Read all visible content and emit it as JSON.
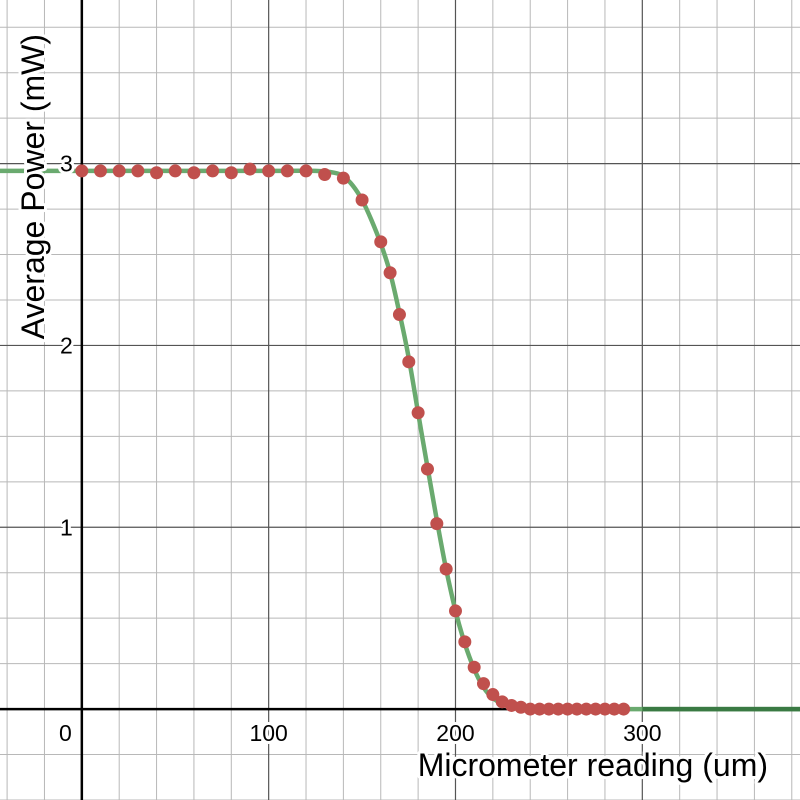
{
  "chart_data": {
    "type": "scatter",
    "xlabel": "Micrometer reading (um)",
    "ylabel": "Average Power (mW)",
    "xlim": [
      -43.8,
      384.4
    ],
    "ylim": [
      -0.5,
      3.9
    ],
    "grid": true,
    "x_ticks": [
      0,
      100,
      200,
      300
    ],
    "y_ticks": [
      1,
      2,
      3
    ],
    "x_tick_labels": [
      "0",
      "100",
      "200",
      "300"
    ],
    "y_tick_labels": [
      "1",
      "2",
      "3"
    ],
    "colors": {
      "points": "#c0504d",
      "fit_line": "#6aaa6f",
      "fit_line_tail": "#3a7a43",
      "major_grid": "#555555",
      "minor_grid": "#b8b8b8",
      "axis": "#000000"
    },
    "series": [
      {
        "kind": "points",
        "x": [
          0,
          10,
          20,
          30,
          40,
          50,
          60,
          70,
          80,
          90,
          100,
          110,
          120,
          130,
          140,
          150,
          160,
          165,
          170,
          175,
          180,
          185,
          190,
          195,
          200,
          205,
          210,
          215,
          220,
          225,
          230,
          235,
          240,
          245,
          250,
          255,
          260,
          265,
          270,
          275,
          280,
          285,
          290
        ],
        "y": [
          2.96,
          2.96,
          2.96,
          2.96,
          2.95,
          2.96,
          2.95,
          2.96,
          2.95,
          2.97,
          2.96,
          2.96,
          2.96,
          2.94,
          2.92,
          2.8,
          2.57,
          2.4,
          2.17,
          1.91,
          1.63,
          1.32,
          1.02,
          0.77,
          0.54,
          0.37,
          0.23,
          0.14,
          0.08,
          0.04,
          0.02,
          0.01,
          0.0,
          0.0,
          0.0,
          0.0,
          0.0,
          0.0,
          0.0,
          0.0,
          0.0,
          0.0,
          0.0
        ]
      },
      {
        "kind": "fit-curve",
        "x": [
          -43.8,
          0,
          100,
          125,
          135,
          140,
          145,
          150,
          155,
          160,
          165,
          170,
          175,
          180,
          185,
          190,
          195,
          200,
          205,
          210,
          215,
          220,
          225,
          230,
          240,
          250,
          300,
          384.4
        ],
        "y": [
          2.96,
          2.96,
          2.96,
          2.96,
          2.95,
          2.93,
          2.88,
          2.8,
          2.69,
          2.56,
          2.4,
          2.18,
          1.93,
          1.63,
          1.33,
          1.04,
          0.77,
          0.54,
          0.36,
          0.22,
          0.12,
          0.06,
          0.03,
          0.01,
          0.0,
          0.0,
          0.0,
          0.0
        ]
      }
    ]
  }
}
